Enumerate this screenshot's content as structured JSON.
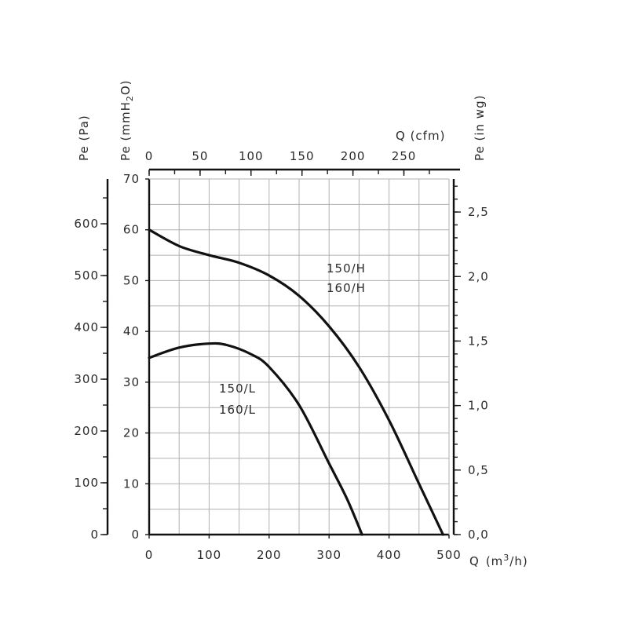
{
  "chart_data": {
    "type": "line",
    "x_axis": {
      "label_prefix": "Q",
      "label_unit": "(m",
      "label_sup": "3",
      "label_suffix": "/h)",
      "min": 0,
      "max": 500,
      "ticks": [
        "0",
        "100",
        "200",
        "300",
        "400",
        "500"
      ]
    },
    "x_axis_top": {
      "label": "Q  (cfm)",
      "ticks": [
        "0",
        "50",
        "100",
        "150",
        "200",
        "250"
      ],
      "tick_values": [
        0,
        50,
        100,
        150,
        200,
        250
      ]
    },
    "y_axis_mmh2o": {
      "label_prefix": "Pe  (mmH",
      "label_sub": "2",
      "label_suffix": "O)",
      "min": 0,
      "max": 70,
      "ticks": [
        "0",
        "10",
        "20",
        "30",
        "40",
        "50",
        "60",
        "70"
      ]
    },
    "y_axis_pa": {
      "label": "Pe  (Pa)",
      "ticks": [
        "0",
        "100",
        "200",
        "300",
        "400",
        "500",
        "600"
      ],
      "tick_values": [
        0,
        100,
        200,
        300,
        400,
        500,
        600
      ]
    },
    "y_axis_inwg": {
      "label": "Pe  (in wg)",
      "ticks": [
        "0,0",
        "0,5",
        "1,0",
        "1,5",
        "2,0",
        "2,5"
      ],
      "tick_values": [
        0,
        0.5,
        1.0,
        1.5,
        2.0,
        2.5
      ]
    },
    "series": [
      {
        "label_lines": [
          "150/H",
          "160/H"
        ],
        "x": [
          0,
          50,
          100,
          150,
          200,
          250,
          300,
          350,
          400,
          450,
          490
        ],
        "y": [
          60,
          56.8,
          55,
          53.5,
          51,
          47,
          41,
          33,
          22.5,
          10,
          0
        ]
      },
      {
        "label_lines": [
          "150/L",
          "160/L"
        ],
        "x": [
          0,
          50,
          100,
          130,
          170,
          200,
          250,
          300,
          330,
          355
        ],
        "y": [
          34.8,
          36.8,
          37.6,
          37.3,
          35.5,
          33,
          25.5,
          14,
          7,
          0
        ]
      }
    ]
  }
}
